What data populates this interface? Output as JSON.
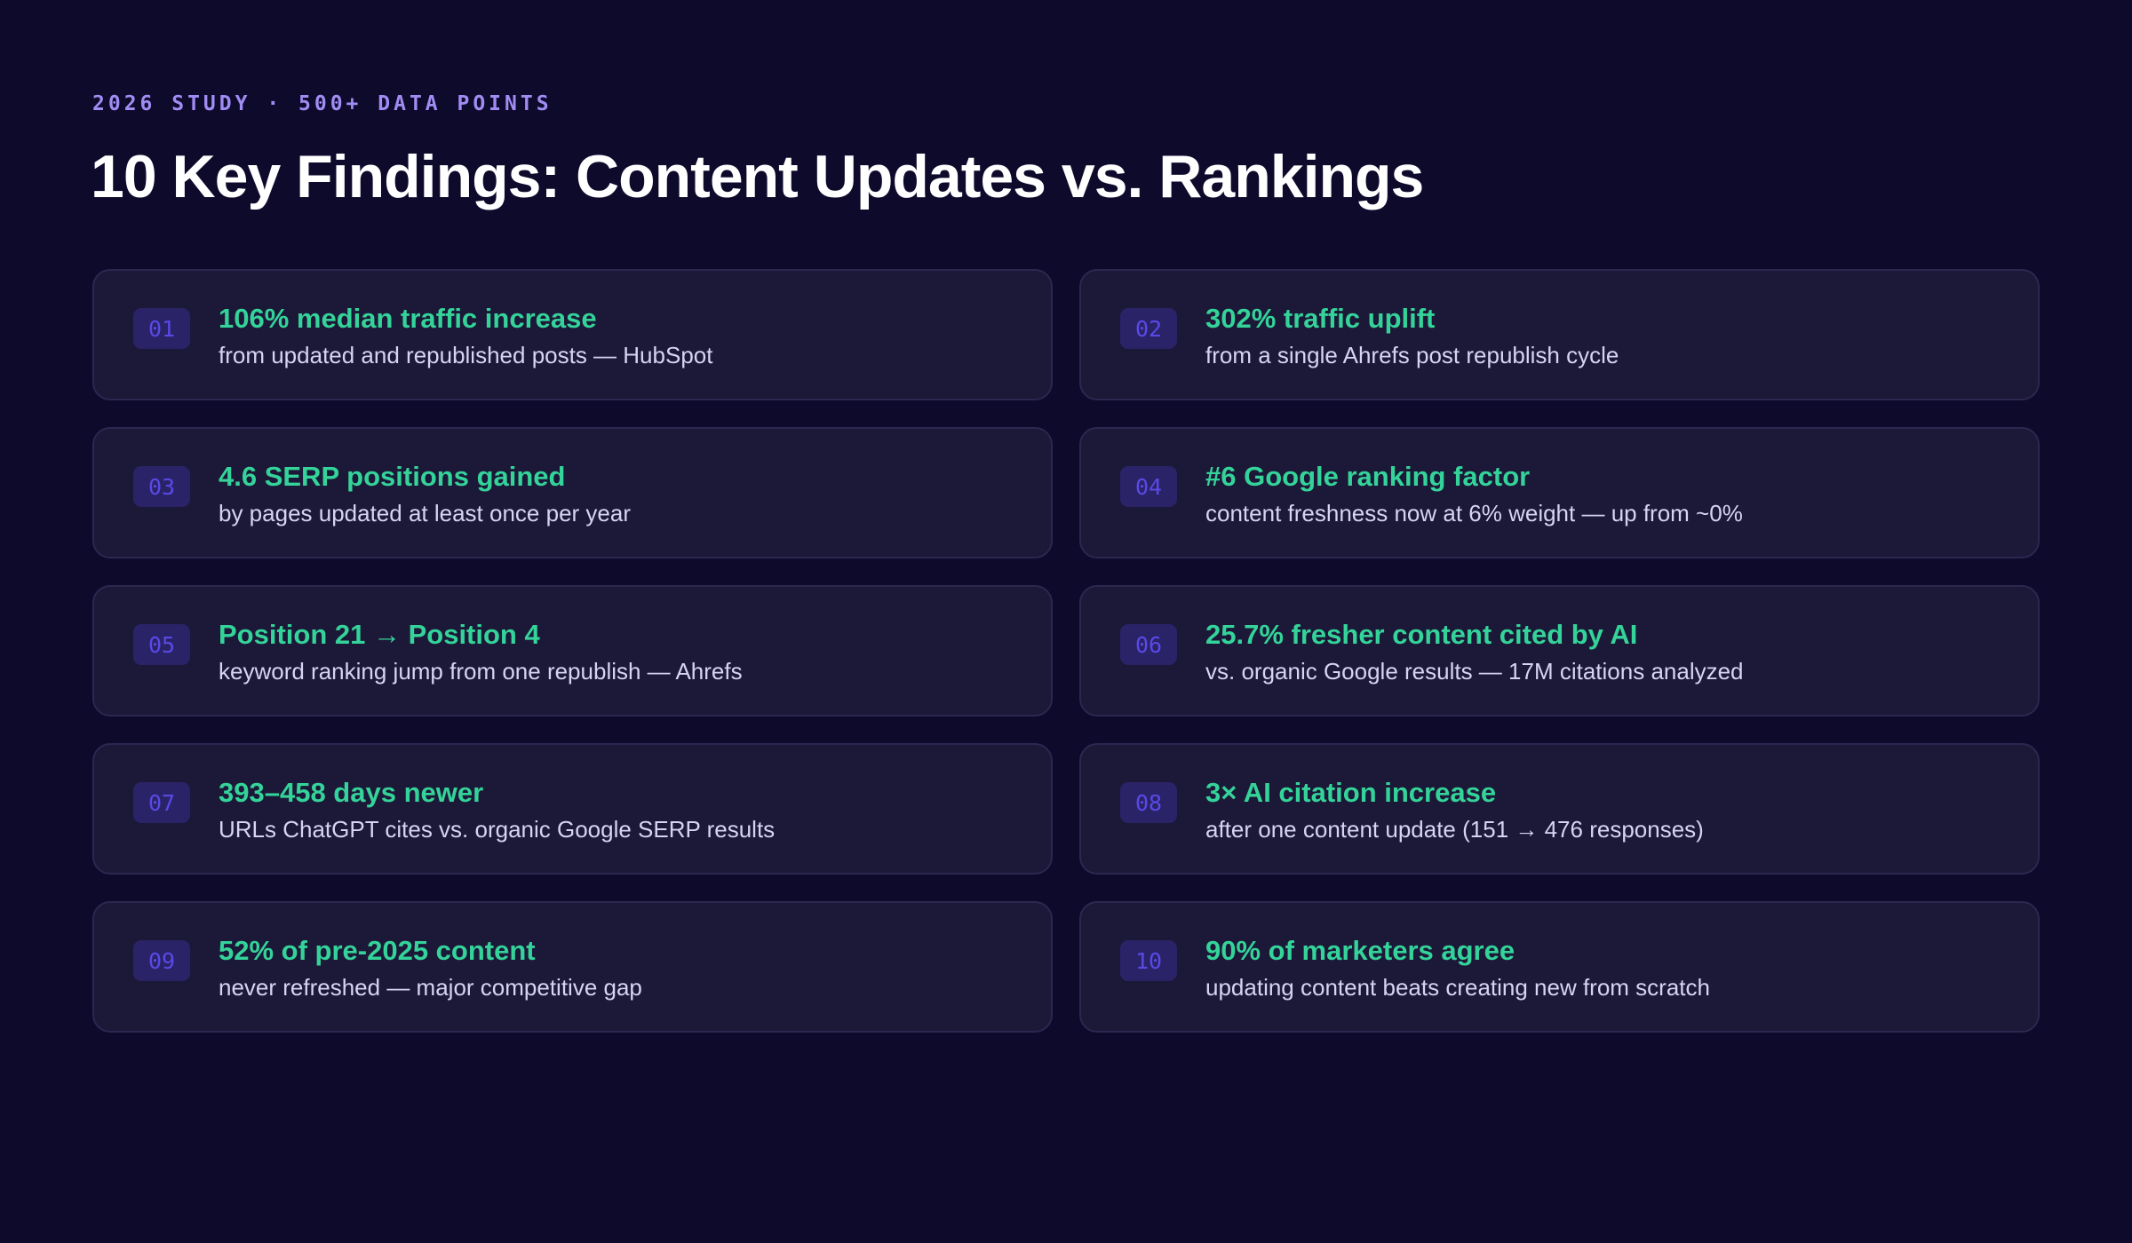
{
  "header": {
    "eyebrow": "2026 STUDY · 500+ DATA POINTS",
    "title": "10 Key Findings: Content Updates vs. Rankings"
  },
  "findings": [
    {
      "num": "01",
      "headline": "106% median traffic increase",
      "detail": "from updated and republished posts — HubSpot"
    },
    {
      "num": "02",
      "headline": "302% traffic uplift",
      "detail": "from a single Ahrefs post republish cycle"
    },
    {
      "num": "03",
      "headline": "4.6 SERP positions gained",
      "detail": "by pages updated at least once per year"
    },
    {
      "num": "04",
      "headline": "#6 Google ranking factor",
      "detail": "content freshness now at 6% weight — up from ~0%"
    },
    {
      "num": "05",
      "headline": "Position 21 → Position 4",
      "detail": "keyword ranking jump from one republish — Ahrefs"
    },
    {
      "num": "06",
      "headline": "25.7% fresher content cited by AI",
      "detail": "vs. organic Google results — 17M citations analyzed"
    },
    {
      "num": "07",
      "headline": "393–458 days newer",
      "detail": "URLs ChatGPT cites vs. organic Google SERP results"
    },
    {
      "num": "08",
      "headline": "3× AI citation increase",
      "detail": "after one content update (151 → 476 responses)"
    },
    {
      "num": "09",
      "headline": "52% of pre-2025 content",
      "detail": "never refreshed — major competitive gap"
    },
    {
      "num": "10",
      "headline": "90% of marketers agree",
      "detail": "updating content beats creating new from scratch"
    }
  ]
}
